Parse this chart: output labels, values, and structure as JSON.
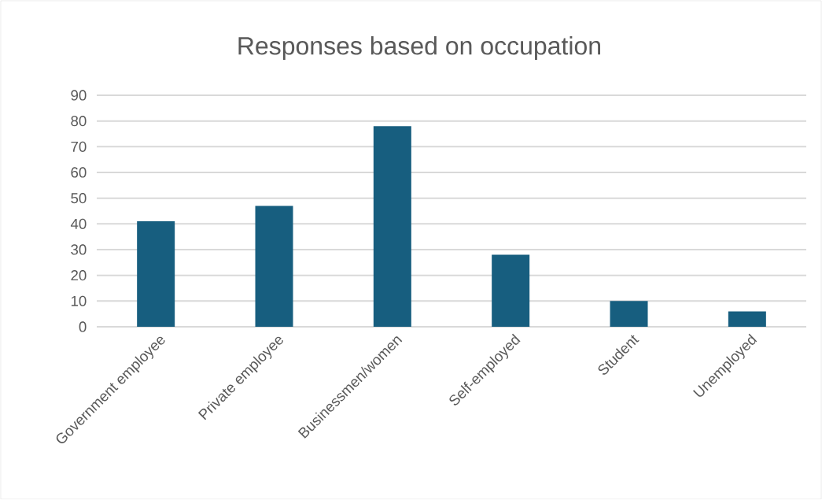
{
  "chart_data": {
    "type": "bar",
    "title": "Responses based on occupation",
    "categories": [
      "Government employee",
      "Private employee",
      "Businessmen/women",
      "Self-employed",
      "Student",
      "Unemployed"
    ],
    "values": [
      41,
      47,
      78,
      28,
      10,
      6
    ],
    "color": "#175e7f",
    "ylim": [
      0,
      90
    ],
    "yticks": [
      0,
      10,
      20,
      30,
      40,
      50,
      60,
      70,
      80,
      90
    ],
    "grid": "y"
  }
}
